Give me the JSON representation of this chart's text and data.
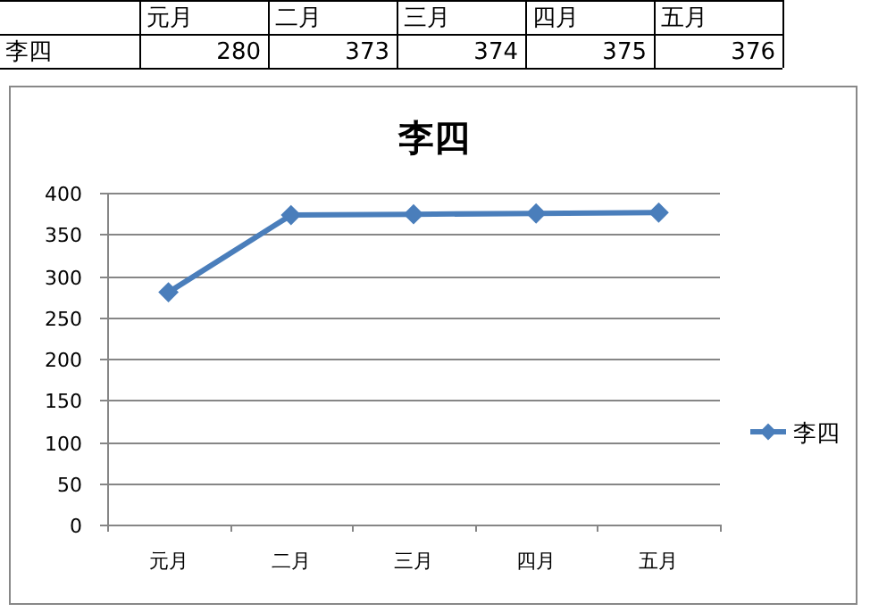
{
  "chart_data": {
    "type": "line",
    "title": "李四",
    "categories": [
      "元月",
      "二月",
      "三月",
      "四月",
      "五月"
    ],
    "series": [
      {
        "name": "李四",
        "color": "#4a7ebb",
        "values": [
          280,
          373,
          374,
          375,
          376
        ]
      }
    ],
    "ylim": [
      0,
      400
    ],
    "yticks": [
      0,
      50,
      100,
      150,
      200,
      250,
      300,
      350,
      400
    ],
    "annotations": [
      "280",
      "373",
      "374",
      "375",
      "376"
    ],
    "grid": "y",
    "legend": "right",
    "marker": "diamond",
    "line_style": "solid"
  }
}
